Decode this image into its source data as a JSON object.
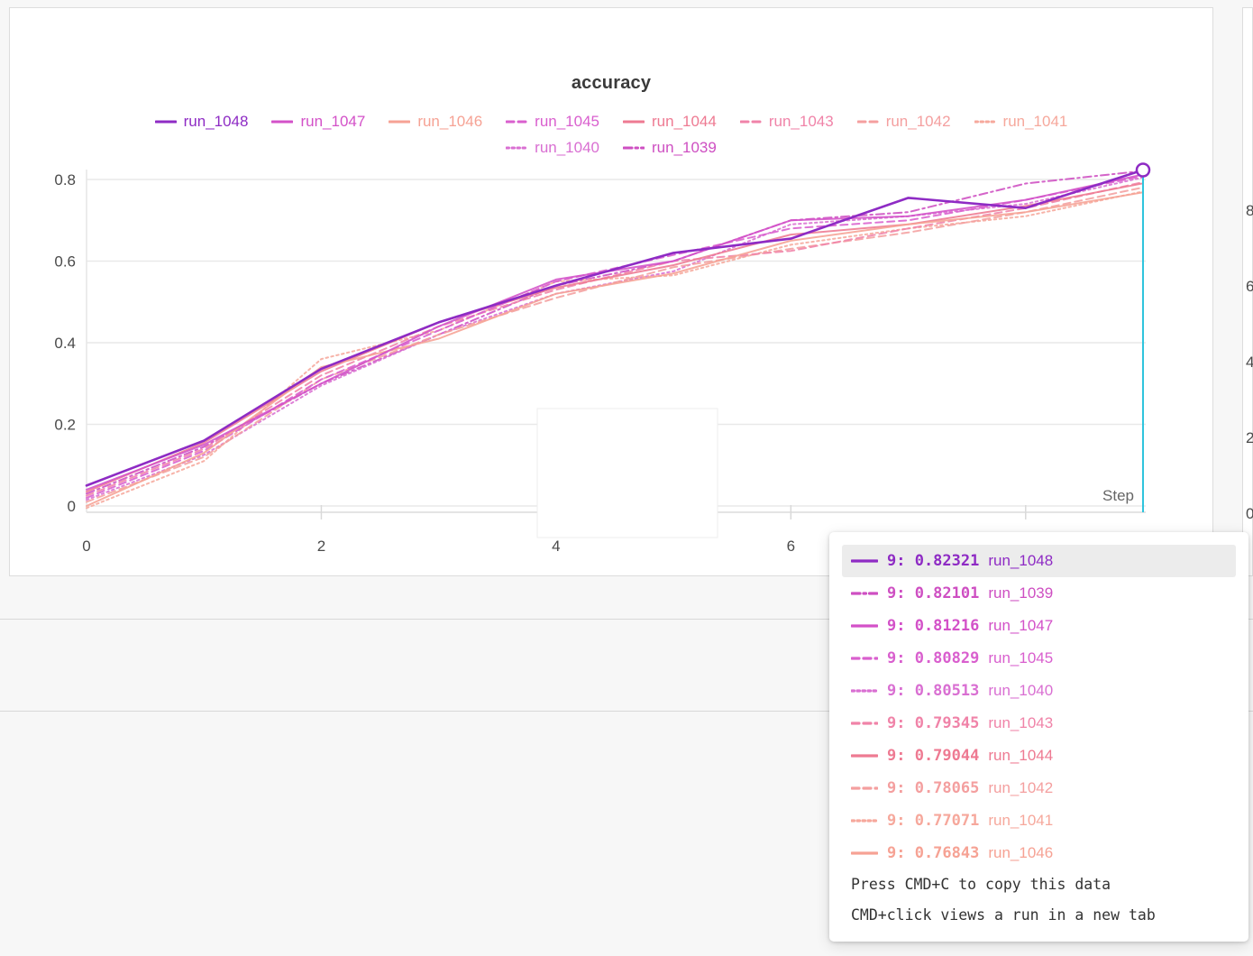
{
  "panel": {
    "title": "accuracy"
  },
  "chart_data": {
    "type": "line",
    "title": "accuracy",
    "xlabel": "Step",
    "ylabel": "",
    "x": [
      0,
      1,
      2,
      3,
      4,
      5,
      6,
      7,
      8,
      9
    ],
    "xlim": [
      0,
      9
    ],
    "ylim": [
      0,
      0.835
    ],
    "grid": true,
    "legend_position": "top",
    "xticks": {
      "values": [
        0,
        2,
        4,
        6,
        8
      ],
      "labels": [
        "0",
        "2",
        "4",
        "6",
        ""
      ]
    },
    "yticks": {
      "values": [
        0,
        0.2,
        0.4,
        0.6,
        0.8
      ],
      "labels": [
        "0",
        "0.2",
        "0.4",
        "0.6",
        "0.8"
      ]
    },
    "crosshair": {
      "x": 9,
      "color": "#2fc4dd",
      "marker_run": "run_1048",
      "marker_value": 0.82321
    },
    "legend_rows": [
      [
        "run_1048",
        "run_1047",
        "run_1046",
        "run_1045",
        "run_1044",
        "run_1043",
        "run_1042",
        "run_1041"
      ],
      [
        "run_1040",
        "run_1039"
      ]
    ],
    "series": [
      {
        "name": "run_1048",
        "color": "#8e2bc4",
        "style": "solid",
        "width": 2.6,
        "values": [
          0.05,
          0.16,
          0.336,
          0.45,
          0.54,
          0.62,
          0.655,
          0.755,
          0.73,
          0.82321
        ]
      },
      {
        "name": "run_1047",
        "color": "#d351c8",
        "style": "solid",
        "width": 2,
        "values": [
          0.04,
          0.15,
          0.3,
          0.44,
          0.555,
          0.6,
          0.7,
          0.71,
          0.75,
          0.81216
        ]
      },
      {
        "name": "run_1046",
        "color": "#f6a294",
        "style": "solid",
        "width": 2,
        "values": [
          0.0,
          0.13,
          0.34,
          0.41,
          0.52,
          0.57,
          0.65,
          0.69,
          0.72,
          0.76843
        ]
      },
      {
        "name": "run_1045",
        "color": "#d95fce",
        "style": "dashed",
        "width": 2,
        "values": [
          0.02,
          0.135,
          0.31,
          0.43,
          0.55,
          0.615,
          0.68,
          0.7,
          0.75,
          0.80829
        ]
      },
      {
        "name": "run_1044",
        "color": "#ee7a92",
        "style": "solid",
        "width": 2,
        "values": [
          0.035,
          0.155,
          0.33,
          0.45,
          0.535,
          0.59,
          0.665,
          0.69,
          0.735,
          0.79044
        ]
      },
      {
        "name": "run_1043",
        "color": "#f083a8",
        "style": "dashed",
        "width": 2,
        "values": [
          0.025,
          0.14,
          0.32,
          0.44,
          0.53,
          0.6,
          0.625,
          0.68,
          0.73,
          0.79345
        ]
      },
      {
        "name": "run_1042",
        "color": "#f49f9f",
        "style": "dashed",
        "width": 2,
        "values": [
          0.01,
          0.12,
          0.31,
          0.42,
          0.51,
          0.585,
          0.63,
          0.67,
          0.72,
          0.78065
        ]
      },
      {
        "name": "run_1041",
        "color": "#f6a89c",
        "style": "dotted",
        "width": 2,
        "values": [
          -0.005,
          0.11,
          0.36,
          0.43,
          0.55,
          0.565,
          0.64,
          0.68,
          0.71,
          0.77071
        ]
      },
      {
        "name": "run_1040",
        "color": "#d96fd2",
        "style": "dotted",
        "width": 2,
        "values": [
          0.015,
          0.125,
          0.295,
          0.42,
          0.52,
          0.575,
          0.69,
          0.71,
          0.74,
          0.80513
        ]
      },
      {
        "name": "run_1039",
        "color": "#ce4fc2",
        "style": "dashdot",
        "width": 2,
        "values": [
          0.03,
          0.145,
          0.3,
          0.42,
          0.54,
          0.6,
          0.7,
          0.72,
          0.79,
          0.82101
        ]
      }
    ]
  },
  "right_panel": {
    "yticks": [
      "8",
      "6",
      "4",
      "2",
      "0"
    ]
  },
  "tooltip": {
    "rows": [
      {
        "step": "9",
        "value": "0.82321",
        "run": "run_1048",
        "highlighted": true
      },
      {
        "step": "9",
        "value": "0.82101",
        "run": "run_1039",
        "highlighted": false
      },
      {
        "step": "9",
        "value": "0.81216",
        "run": "run_1047",
        "highlighted": false
      },
      {
        "step": "9",
        "value": "0.80829",
        "run": "run_1045",
        "highlighted": false
      },
      {
        "step": "9",
        "value": "0.80513",
        "run": "run_1040",
        "highlighted": false
      },
      {
        "step": "9",
        "value": "0.79345",
        "run": "run_1043",
        "highlighted": false
      },
      {
        "step": "9",
        "value": "0.79044",
        "run": "run_1044",
        "highlighted": false
      },
      {
        "step": "9",
        "value": "0.78065",
        "run": "run_1042",
        "highlighted": false
      },
      {
        "step": "9",
        "value": "0.77071",
        "run": "run_1041",
        "highlighted": false
      },
      {
        "step": "9",
        "value": "0.76843",
        "run": "run_1046",
        "highlighted": false
      }
    ],
    "hints": [
      "Press CMD+C to copy this data",
      "CMD+click views a run in a new tab"
    ]
  }
}
